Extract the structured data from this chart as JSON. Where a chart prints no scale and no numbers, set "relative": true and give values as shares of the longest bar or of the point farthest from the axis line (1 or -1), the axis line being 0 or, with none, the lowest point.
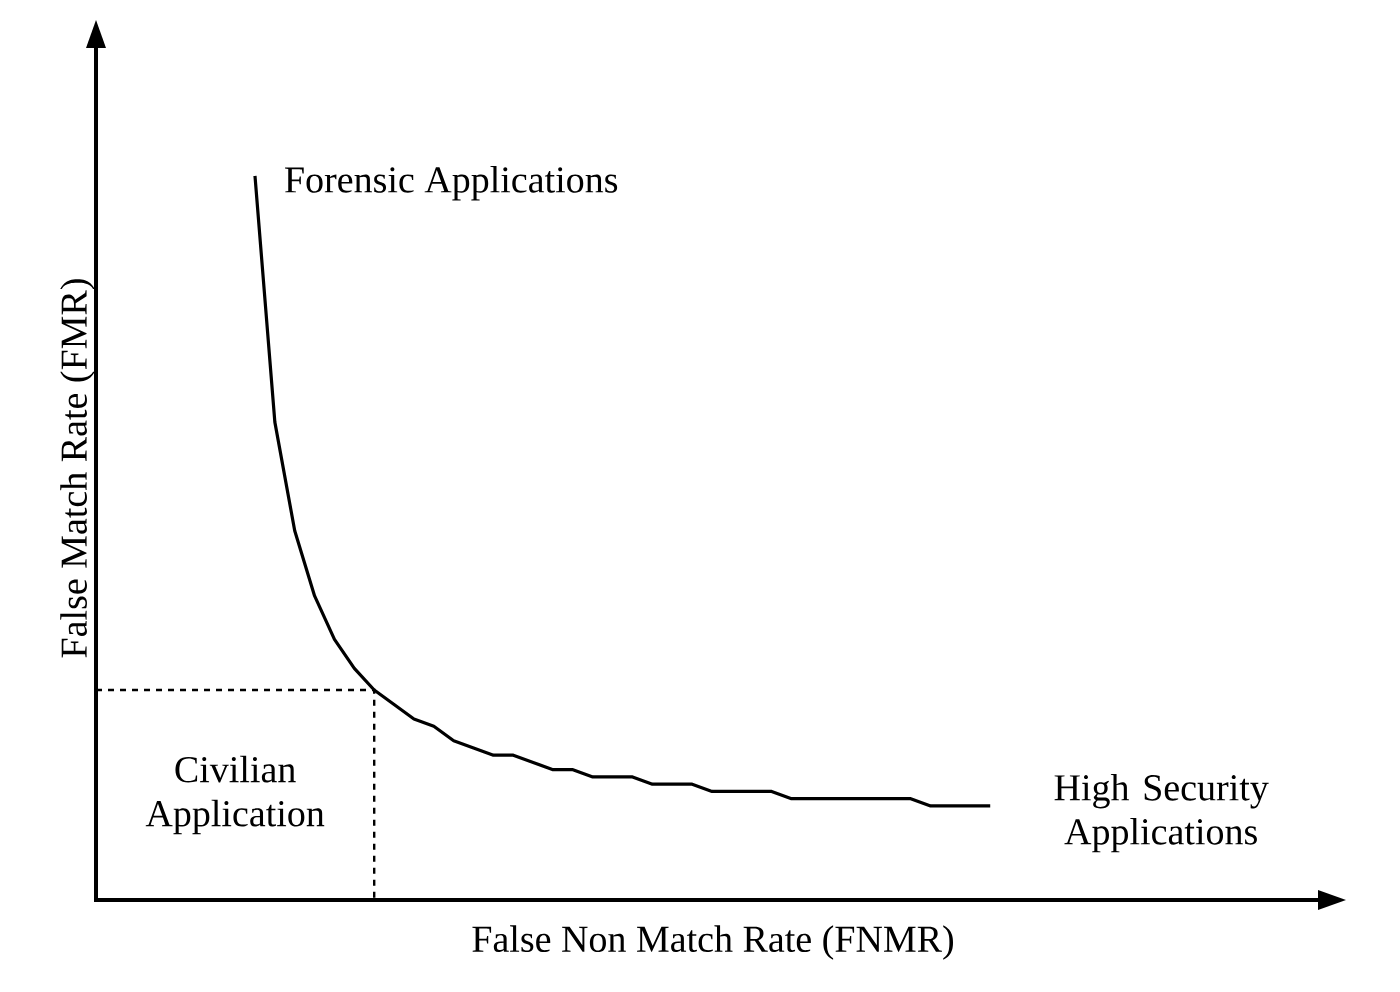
{
  "chart_data": {
    "type": "line",
    "relative": true,
    "xlabel": "False Non Match Rate (FNMR)",
    "ylabel": "False Match Rate (FMR)",
    "color": "#000000",
    "line_style": "solid",
    "marker": "none",
    "legend": false,
    "ref_lines": [
      {
        "axis": "y",
        "value": 0.29,
        "line_style": "dashed"
      }
    ],
    "categories": [
      null,
      null,
      null,
      null,
      null,
      null,
      null,
      null,
      null,
      null,
      null,
      null,
      null,
      null,
      null,
      null,
      null,
      null,
      null,
      null,
      null,
      null,
      null,
      null,
      null,
      null,
      null,
      null,
      null,
      null,
      null,
      null,
      null,
      null,
      null,
      null,
      null,
      null,
      null,
      null,
      null,
      null,
      null,
      null,
      null,
      null,
      null,
      null,
      null,
      null,
      null,
      null,
      null,
      null,
      null,
      null,
      null,
      null,
      null,
      null,
      null,
      null,
      null
    ],
    "values": [
      null,
      null,
      null,
      null,
      null,
      null,
      null,
      null,
      1,
      0.66,
      0.51,
      0.42,
      0.36,
      0.32,
      0.29,
      0.27,
      0.25,
      0.24,
      0.22,
      0.21,
      0.2,
      0.2,
      0.19,
      0.18,
      0.18,
      0.17,
      0.17,
      0.17,
      0.16,
      0.16,
      0.16,
      0.15,
      0.15,
      0.15,
      0.15,
      0.14,
      0.14,
      0.14,
      0.14,
      0.14,
      0.14,
      0.14,
      0.13,
      0.13,
      0.13,
      0.13,
      null,
      null,
      null,
      null,
      null,
      null,
      null,
      null,
      null,
      null,
      null,
      null,
      null,
      null,
      null,
      null,
      null
    ],
    "annotations": [
      "Forensic Applications",
      "Civilian Application",
      "High Security Applications"
    ]
  }
}
